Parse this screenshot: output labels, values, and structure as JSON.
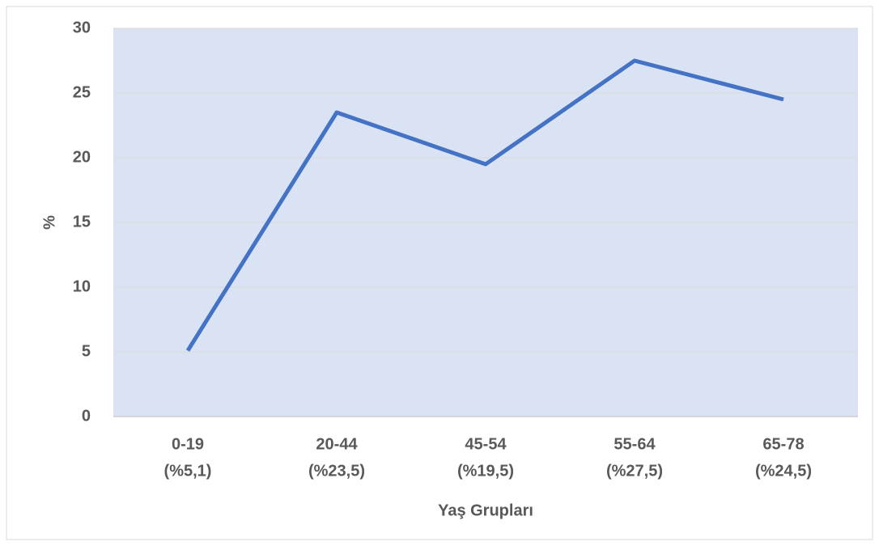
{
  "chart_data": {
    "type": "line",
    "x_label": "Yaş Grupları",
    "y_label": "%",
    "categories": [
      [
        "0-19",
        "(%5,1)"
      ],
      [
        "20-44",
        "(%23,5)"
      ],
      [
        "45-54",
        "(%19,5)"
      ],
      [
        "55-64",
        "(%27,5)"
      ],
      [
        "65-78",
        "(%24,5)"
      ]
    ],
    "values": [
      5.1,
      23.5,
      19.5,
      27.5,
      24.5
    ],
    "color": "#4472c4",
    "plot_background": "#dae3f3",
    "ylim": [
      0,
      30
    ],
    "yticks": [
      0,
      5,
      10,
      15,
      20,
      25,
      30
    ],
    "grid": true
  }
}
